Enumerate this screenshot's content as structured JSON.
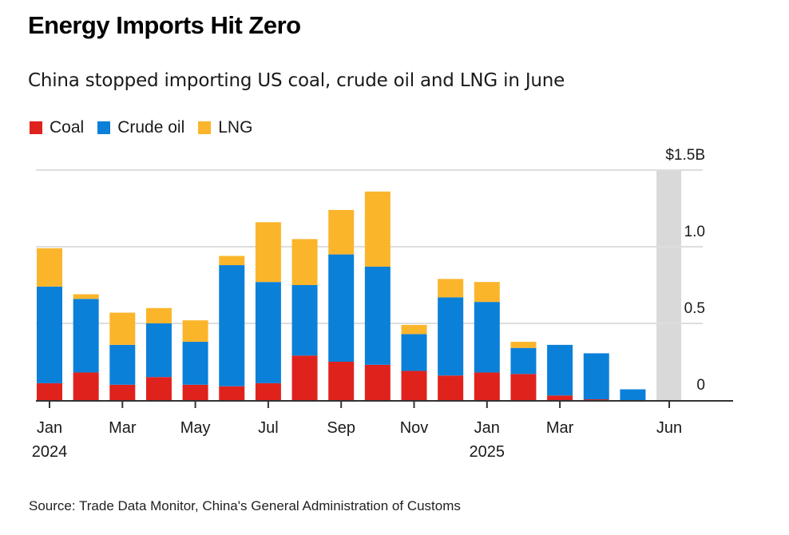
{
  "header": {
    "title": "Energy Imports Hit Zero",
    "subtitle": "China stopped importing US coal, crude oil and LNG in June"
  },
  "legend": [
    {
      "label": "Coal",
      "color": "#e0221d"
    },
    {
      "label": "Crude oil",
      "color": "#0b80d9"
    },
    {
      "label": "LNG",
      "color": "#fbb52b"
    }
  ],
  "footer": {
    "source": "Source: Trade Data Monitor, China's General Administration of Customs"
  },
  "chart_data": {
    "type": "bar",
    "stacked": true,
    "title": "Energy Imports Hit Zero",
    "subtitle": "China stopped importing US coal, crude oil and LNG in June",
    "xlabel": "",
    "ylabel": "",
    "units": "$B",
    "ylim": [
      0,
      1.5
    ],
    "y_ticks": [
      {
        "value": 0,
        "label": "0"
      },
      {
        "value": 0.5,
        "label": "0.5"
      },
      {
        "value": 1.0,
        "label": "1.0"
      },
      {
        "value": 1.5,
        "label": "$1.5B"
      }
    ],
    "y_axis_side": "right",
    "grid": true,
    "legend_position": "top-left",
    "categories": [
      "2024-01",
      "2024-02",
      "2024-03",
      "2024-04",
      "2024-05",
      "2024-06",
      "2024-07",
      "2024-08",
      "2024-09",
      "2024-10",
      "2024-11",
      "2024-12",
      "2025-01",
      "2025-02",
      "2025-03",
      "2025-04",
      "2025-05",
      "2025-06"
    ],
    "x_ticks": [
      {
        "index": 0,
        "label": "Jan",
        "sublabel": "2024"
      },
      {
        "index": 2,
        "label": "Mar",
        "sublabel": ""
      },
      {
        "index": 4,
        "label": "May",
        "sublabel": ""
      },
      {
        "index": 6,
        "label": "Jul",
        "sublabel": ""
      },
      {
        "index": 8,
        "label": "Sep",
        "sublabel": ""
      },
      {
        "index": 10,
        "label": "Nov",
        "sublabel": ""
      },
      {
        "index": 12,
        "label": "Jan",
        "sublabel": "2025"
      },
      {
        "index": 14,
        "label": "Mar",
        "sublabel": ""
      },
      {
        "index": 17,
        "label": "Jun",
        "sublabel": ""
      }
    ],
    "series": [
      {
        "name": "Coal",
        "color": "#e0221d",
        "values": [
          0.11,
          0.18,
          0.1,
          0.15,
          0.1,
          0.09,
          0.11,
          0.29,
          0.25,
          0.23,
          0.19,
          0.16,
          0.18,
          0.17,
          0.03,
          0.005,
          0.0,
          0.0
        ]
      },
      {
        "name": "Crude oil",
        "color": "#0b80d9",
        "values": [
          0.63,
          0.48,
          0.26,
          0.35,
          0.28,
          0.79,
          0.66,
          0.46,
          0.7,
          0.64,
          0.24,
          0.51,
          0.46,
          0.17,
          0.33,
          0.3,
          0.07,
          0.0
        ]
      },
      {
        "name": "LNG",
        "color": "#fbb52b",
        "values": [
          0.25,
          0.03,
          0.21,
          0.1,
          0.14,
          0.06,
          0.39,
          0.3,
          0.29,
          0.49,
          0.06,
          0.12,
          0.13,
          0.04,
          0.0,
          0.0,
          0.0,
          0.0
        ]
      }
    ],
    "highlight": {
      "index": 17,
      "label": "Jun",
      "note": "shaded month with zero imports",
      "color": "#d9d9d9"
    }
  }
}
